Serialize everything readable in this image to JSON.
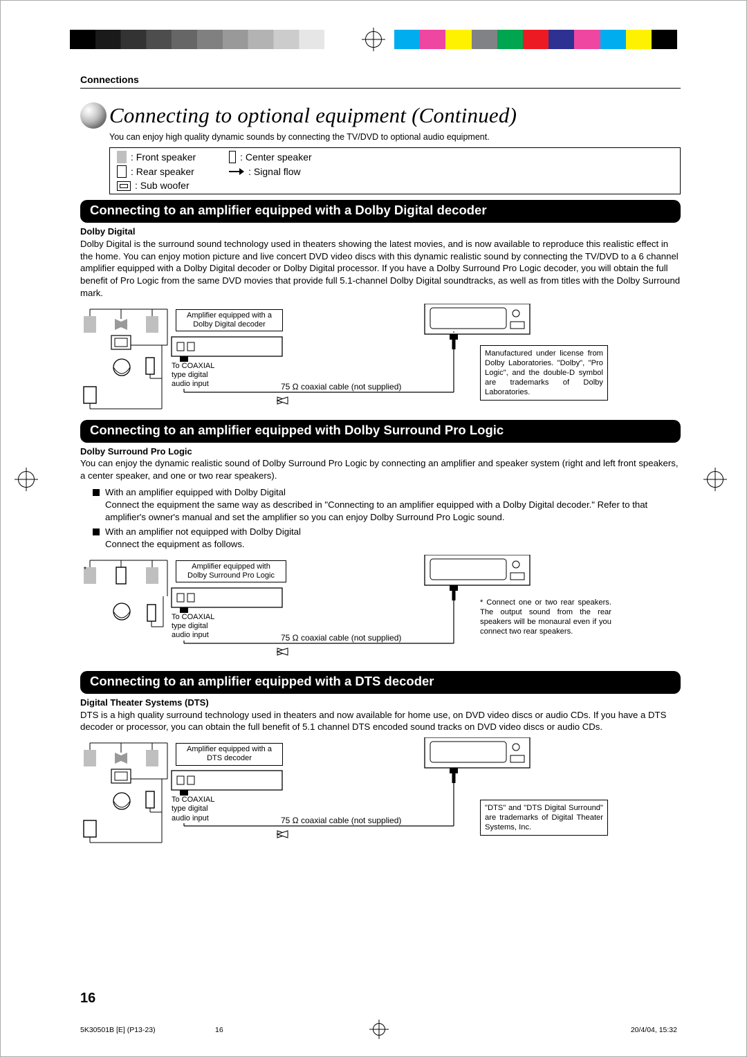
{
  "meta": {
    "section_label": "Connections",
    "page_title": "Connecting to optional equipment (Continued)",
    "intro": "You can enjoy high quality dynamic sounds by connecting the TV/DVD to optional audio equipment.",
    "page_number": "16",
    "footer_left": "5K30501B [E] (P13-23)",
    "footer_center": "16",
    "footer_right": "20/4/04, 15:32"
  },
  "legend": {
    "front": ": Front speaker",
    "rear": ": Rear speaker",
    "sub": ": Sub woofer",
    "center": ": Center speaker",
    "flow": ": Signal flow"
  },
  "colorbar": {
    "swatches": [
      "#00adee",
      "#ef46a1",
      "#fff200",
      "#808285",
      "#00a550",
      "#ec1b23",
      "#2e3092",
      "#ef46a1",
      "#00adee",
      "#fff200",
      "#000000"
    ]
  },
  "sections": {
    "dolby_digital": {
      "bar": "Connecting to an amplifier equipped with a Dolby Digital decoder",
      "sub": "Dolby Digital",
      "body": "Dolby Digital is the surround sound technology used in theaters showing the latest movies, and is now available to reproduce this realistic effect in the home. You can enjoy motion picture and live concert DVD video discs with this dynamic realistic sound by connecting the TV/DVD to a 6 channel amplifier equipped with a Dolby Digital decoder or Dolby Digital processor. If you have a Dolby Surround Pro Logic decoder, you will obtain the full benefit of Pro Logic from the same DVD movies that provide full 5.1-channel Dolby Digital soundtracks, as well as from titles with the Dolby Surround mark.",
      "amp_label": "Amplifier equipped with a\nDolby Digital decoder",
      "coax_in": "To COAXIAL\ntype digital\naudio input",
      "cable": "75 Ω coaxial cable (not supplied)",
      "note": "Manufactured under license from Dolby Laboratories. \"Dolby\", \"Pro Logic\", and the double-D symbol are trade­marks of Dolby Laboratories."
    },
    "prologic": {
      "bar": "Connecting to an amplifier equipped with Dolby Surround Pro Logic",
      "sub": "Dolby Surround Pro Logic",
      "body": "You can enjoy the dynamic realistic sound of Dolby Surround Pro Logic by connecting an amplifier and speaker system (right and left front speakers, a center speaker, and one or two rear speakers).",
      "bullets": [
        {
          "head": "With an amplifier equipped with Dolby Digital",
          "body": "Connect the equipment the same way as described in \"Connecting to an amplifier equipped with a Dolby Digital decoder.\" Refer to that amplifier's owner's manual and set the amplifier so you can enjoy Dolby Surround Pro Logic sound."
        },
        {
          "head": "With an amplifier not equipped with Dolby Digital",
          "body": "Connect the equipment as follows."
        }
      ],
      "amp_label": "Amplifier equipped with\nDolby Surround Pro Logic",
      "coax_in": "To COAXIAL\ntype digital\naudio input",
      "cable": "75 Ω coaxial cable (not supplied)",
      "star_note": "* Connect one or two rear speak­ers. The output sound from the rear speakers will be monaural even if you connect two rear speakers."
    },
    "dts": {
      "bar": "Connecting to an amplifier equipped with a DTS decoder",
      "sub": "Digital Theater Systems (DTS)",
      "body": "DTS is a high quality surround technology used in theaters and now available for home use, on DVD video discs or audio CDs. If you have a DTS decoder or processor, you can obtain the full benefit of 5.1 channel DTS encoded sound tracks on DVD video discs or audio CDs.",
      "amp_label": "Amplifier equipped with a\nDTS decoder",
      "coax_in": "To COAXIAL\ntype digital\naudio input",
      "cable": "75 Ω coaxial cable (not supplied)",
      "note": "\"DTS\" and \"DTS Digital Surround\" are trademarks of Digital Theater Systems, Inc."
    }
  }
}
